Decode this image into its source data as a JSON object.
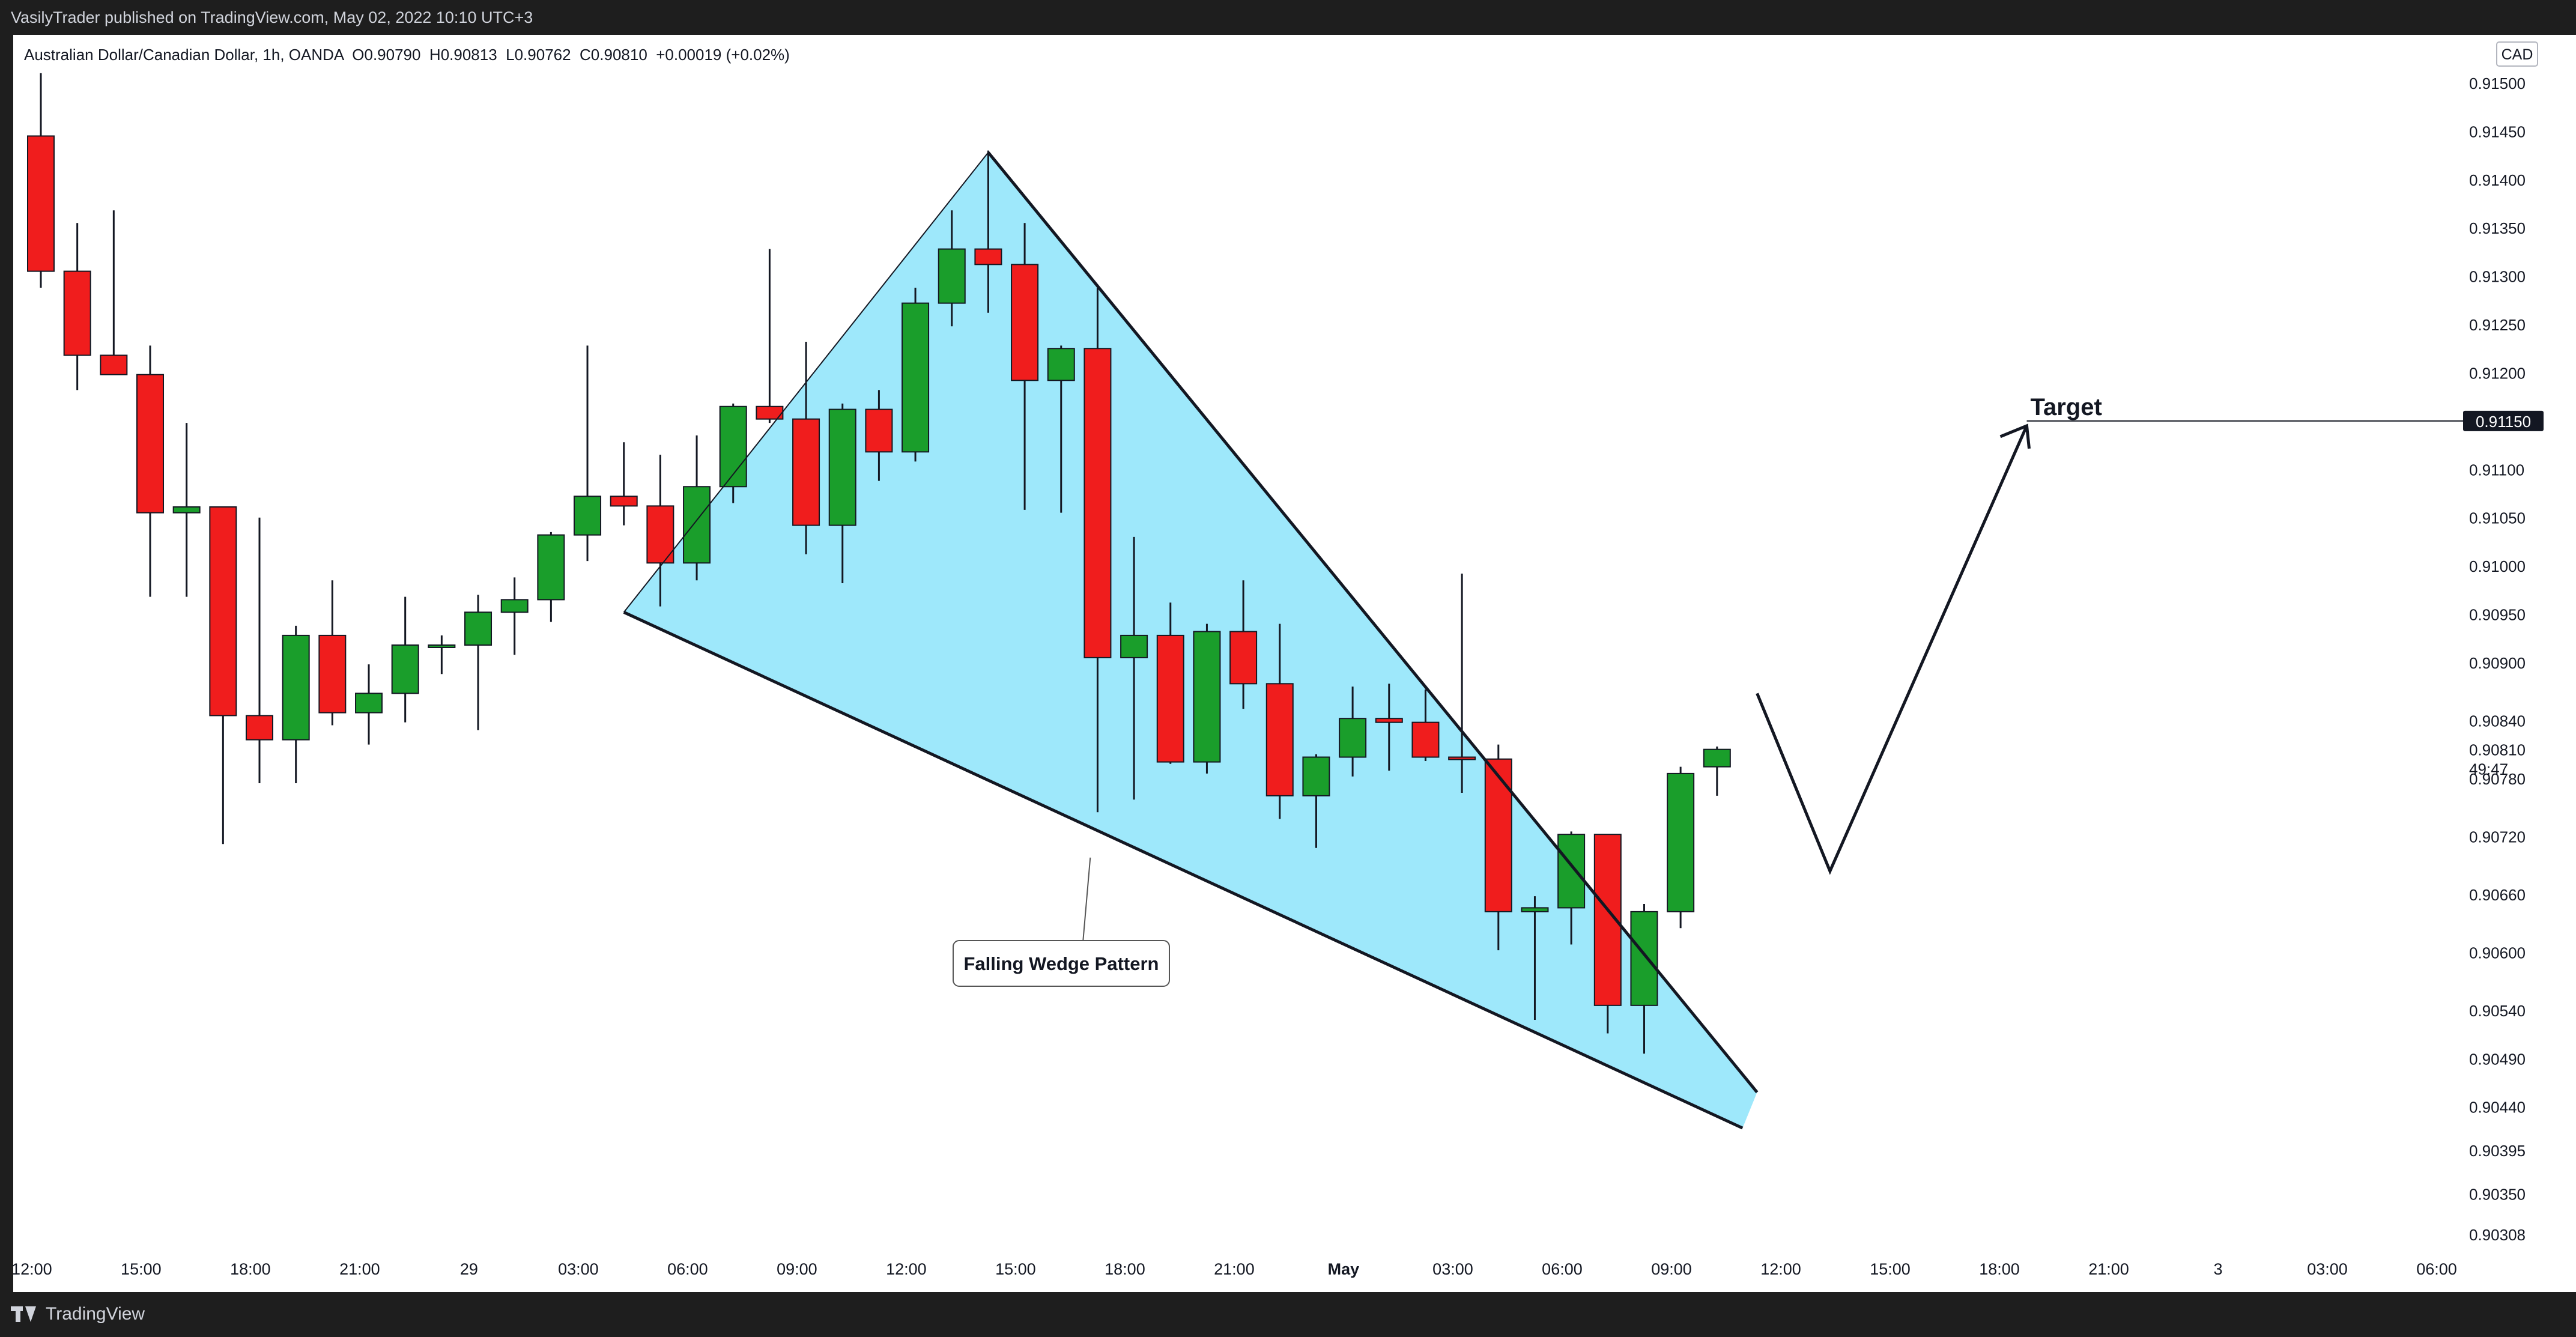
{
  "topbar": {
    "text": "VasilyTrader published on TradingView.com, May 02, 2022 10:10 UTC+3"
  },
  "header": {
    "text": "Australian Dollar/Canadian Dollar, 1h, OANDA  O0.90790  H0.90813  L0.90762  C0.90810  +0.00019 (+0.02%)"
  },
  "footer": {
    "brand": "TradingView"
  },
  "colors": {
    "up": "#1a9e2b",
    "down": "#f01d1d",
    "wedge_fill": "#9ee8fb",
    "line": "#131722",
    "price_tag_bg": "#131722"
  },
  "chart_data": {
    "type": "candlestick",
    "currency": "CAD",
    "price_axis": {
      "min": 0.90308,
      "max": 0.915,
      "ticks": [
        "0.91500",
        "0.91450",
        "0.91400",
        "0.91350",
        "0.91300",
        "0.91250",
        "0.91200",
        "0.91150",
        "0.91100",
        "0.91050",
        "0.91000",
        "0.90950",
        "0.90900",
        "0.90840",
        "0.90810",
        "0.90780",
        "0.90720",
        "0.90660",
        "0.90600",
        "0.90540",
        "0.90490",
        "0.90440",
        "0.90395",
        "0.90350",
        "0.90308"
      ]
    },
    "time_axis": {
      "ticks": [
        "12:00",
        "15:00",
        "18:00",
        "21:00",
        "29",
        "03:00",
        "06:00",
        "09:00",
        "12:00",
        "15:00",
        "18:00",
        "21:00",
        "May",
        "03:00",
        "06:00",
        "09:00",
        "12:00",
        "15:00",
        "18:00",
        "21:00",
        "3",
        "03:00",
        "06:00"
      ]
    },
    "candles": [
      {
        "o": 0.91445,
        "h": 0.9151,
        "l": 0.91288,
        "c": 0.91305
      },
      {
        "o": 0.91305,
        "h": 0.91355,
        "l": 0.91182,
        "c": 0.91218
      },
      {
        "o": 0.91218,
        "h": 0.91368,
        "l": 0.91198,
        "c": 0.91198
      },
      {
        "o": 0.91198,
        "h": 0.91228,
        "l": 0.90968,
        "c": 0.91055
      },
      {
        "o": 0.91055,
        "h": 0.91148,
        "l": 0.90968,
        "c": 0.91061
      },
      {
        "o": 0.91061,
        "h": 0.91061,
        "l": 0.90712,
        "c": 0.90845
      },
      {
        "o": 0.90845,
        "h": 0.9105,
        "l": 0.90775,
        "c": 0.9082
      },
      {
        "o": 0.9082,
        "h": 0.90938,
        "l": 0.90775,
        "c": 0.90928
      },
      {
        "o": 0.90928,
        "h": 0.90985,
        "l": 0.90835,
        "c": 0.90848
      },
      {
        "o": 0.90848,
        "h": 0.90898,
        "l": 0.90815,
        "c": 0.90868
      },
      {
        "o": 0.90868,
        "h": 0.90968,
        "l": 0.90838,
        "c": 0.90918
      },
      {
        "o": 0.90918,
        "h": 0.90928,
        "l": 0.90888,
        "c": 0.90918
      },
      {
        "o": 0.90918,
        "h": 0.9097,
        "l": 0.9083,
        "c": 0.90952
      },
      {
        "o": 0.90952,
        "h": 0.90988,
        "l": 0.90908,
        "c": 0.90965
      },
      {
        "o": 0.90965,
        "h": 0.91035,
        "l": 0.90942,
        "c": 0.91032
      },
      {
        "o": 0.91032,
        "h": 0.91228,
        "l": 0.91005,
        "c": 0.91072
      },
      {
        "o": 0.91072,
        "h": 0.91128,
        "l": 0.91042,
        "c": 0.91062
      },
      {
        "o": 0.91062,
        "h": 0.91115,
        "l": 0.90958,
        "c": 0.91003
      },
      {
        "o": 0.91003,
        "h": 0.91135,
        "l": 0.90985,
        "c": 0.91082
      },
      {
        "o": 0.91082,
        "h": 0.91168,
        "l": 0.91065,
        "c": 0.91165
      },
      {
        "o": 0.91165,
        "h": 0.91328,
        "l": 0.91148,
        "c": 0.91152
      },
      {
        "o": 0.91152,
        "h": 0.91232,
        "l": 0.91012,
        "c": 0.91042
      },
      {
        "o": 0.91042,
        "h": 0.91168,
        "l": 0.90982,
        "c": 0.91162
      },
      {
        "o": 0.91162,
        "h": 0.91182,
        "l": 0.91088,
        "c": 0.91118
      },
      {
        "o": 0.91118,
        "h": 0.91288,
        "l": 0.91108,
        "c": 0.91272
      },
      {
        "o": 0.91272,
        "h": 0.91368,
        "l": 0.91248,
        "c": 0.91328
      },
      {
        "o": 0.91328,
        "h": 0.9143,
        "l": 0.91262,
        "c": 0.91312
      },
      {
        "o": 0.91312,
        "h": 0.91355,
        "l": 0.91058,
        "c": 0.91192
      },
      {
        "o": 0.91192,
        "h": 0.91228,
        "l": 0.91055,
        "c": 0.91225
      },
      {
        "o": 0.91225,
        "h": 0.91288,
        "l": 0.90745,
        "c": 0.90905
      },
      {
        "o": 0.90905,
        "h": 0.9103,
        "l": 0.90758,
        "c": 0.90928
      },
      {
        "o": 0.90928,
        "h": 0.90962,
        "l": 0.90795,
        "c": 0.90797
      },
      {
        "o": 0.90797,
        "h": 0.9094,
        "l": 0.90785,
        "c": 0.90932
      },
      {
        "o": 0.90932,
        "h": 0.90985,
        "l": 0.90852,
        "c": 0.90878
      },
      {
        "o": 0.90878,
        "h": 0.9094,
        "l": 0.90738,
        "c": 0.90762
      },
      {
        "o": 0.90762,
        "h": 0.90805,
        "l": 0.90708,
        "c": 0.90802
      },
      {
        "o": 0.90802,
        "h": 0.90875,
        "l": 0.90782,
        "c": 0.90842
      },
      {
        "o": 0.90842,
        "h": 0.90878,
        "l": 0.90788,
        "c": 0.90838
      },
      {
        "o": 0.90838,
        "h": 0.90872,
        "l": 0.90798,
        "c": 0.90802
      },
      {
        "o": 0.90802,
        "h": 0.90992,
        "l": 0.90765,
        "c": 0.908
      },
      {
        "o": 0.908,
        "h": 0.90815,
        "l": 0.90602,
        "c": 0.90642
      },
      {
        "o": 0.90642,
        "h": 0.90658,
        "l": 0.9053,
        "c": 0.90646
      },
      {
        "o": 0.90646,
        "h": 0.90725,
        "l": 0.90608,
        "c": 0.90722
      },
      {
        "o": 0.90722,
        "h": 0.90722,
        "l": 0.90516,
        "c": 0.90545
      },
      {
        "o": 0.90545,
        "h": 0.9065,
        "l": 0.90495,
        "c": 0.90642
      },
      {
        "o": 0.90642,
        "h": 0.90792,
        "l": 0.90625,
        "c": 0.90785
      },
      {
        "o": 0.90792,
        "h": 0.90813,
        "l": 0.90762,
        "c": 0.9081
      }
    ],
    "annotations": {
      "pattern_label": "Falling Wedge Pattern",
      "target_label": "Target",
      "target_price_label": "0.91150",
      "countdown": "49:47"
    }
  }
}
